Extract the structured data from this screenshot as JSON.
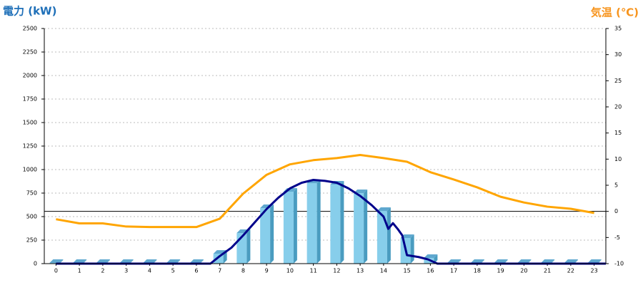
{
  "chart_data": {
    "type": "bar-line",
    "y_title": "電力 (kW)",
    "y2_title": "気温 (℃)",
    "categories": [
      "0",
      "1",
      "2",
      "3",
      "4",
      "5",
      "6",
      "7",
      "8",
      "9",
      "10",
      "11",
      "12",
      "13",
      "14",
      "15",
      "16",
      "17",
      "18",
      "19",
      "20",
      "21",
      "22",
      "23"
    ],
    "ylim": [
      0,
      2500
    ],
    "yticks": [
      0,
      250,
      500,
      750,
      1000,
      1250,
      1500,
      1750,
      2000,
      2250,
      2500
    ],
    "y2lim": [
      -10,
      35
    ],
    "y2ticks": [
      -10,
      -5,
      0,
      5,
      10,
      15,
      20,
      25,
      30,
      35
    ],
    "y2_reference": 0,
    "grid": true,
    "series": [
      {
        "type": "bar",
        "color": "#87ceeb",
        "values": [
          0,
          0,
          0,
          0,
          0,
          0,
          0,
          98,
          318,
          583,
          758,
          848,
          833,
          742,
          553,
          265,
          53,
          0,
          0,
          0,
          0,
          0,
          0,
          0
        ]
      },
      {
        "type": "line",
        "color": "#00008b",
        "x": [
          0,
          6.6,
          7,
          7.5,
          8,
          8.5,
          9,
          9.5,
          10,
          10.5,
          11,
          11.5,
          12,
          12.5,
          13,
          13.5,
          14,
          14.2,
          14.4,
          14.6,
          14.8,
          15,
          15.5,
          15.9,
          16.3,
          23.5
        ],
        "values": [
          0,
          0,
          80,
          170,
          300,
          440,
          580,
          700,
          800,
          860,
          890,
          880,
          860,
          800,
          720,
          620,
          500,
          370,
          430,
          370,
          300,
          90,
          70,
          45,
          0,
          0
        ]
      },
      {
        "type": "line",
        "axis": "y2",
        "color": "#ffa500",
        "values": [
          -1.5,
          -2.3,
          -2.3,
          -2.9,
          -3,
          -3,
          -3,
          -1.4,
          3.4,
          7,
          9,
          9.8,
          10.2,
          10.8,
          10.2,
          9.5,
          7.5,
          6.1,
          4.6,
          2.8,
          1.7,
          0.9,
          0.5,
          -0.3
        ]
      }
    ]
  }
}
